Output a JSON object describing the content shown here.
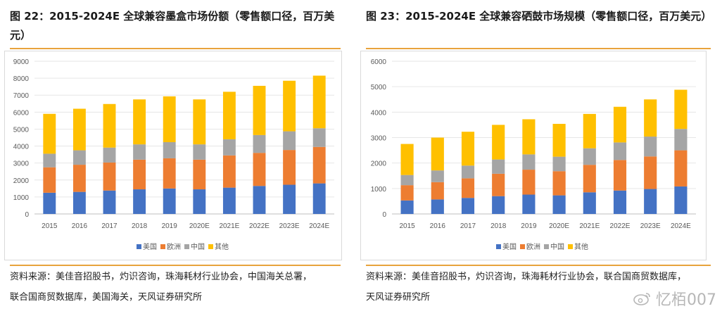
{
  "charts": {
    "left": {
      "title": "图 22：2015-2024E 全球兼容墨盒市场份额（零售额口径，百万美元）",
      "source_line1": "资料来源：美佳音招股书，灼识咨询，珠海耗材行业协会，中国海关总署，",
      "source_line2": "联合国商贸数据库，美国海关，天风证券研究所"
    },
    "right": {
      "title": "图 23：2015-2024E 全球兼容硒鼓市场规模（零售额口径，百万美元）",
      "source_line1": "资料来源：美佳音招股书，灼识咨询，珠海耗材行业协会，联合国商贸数据库，",
      "source_line2": "天风证券研究所"
    }
  },
  "watermark": "忆栢007",
  "colors": {
    "accent": "#e8a33c",
    "us": "#4472c4",
    "eu": "#ed7d31",
    "cn": "#a5a5a5",
    "other": "#ffc000"
  },
  "chart_data": [
    {
      "type": "bar",
      "stacked": true,
      "title": "2015-2024E 全球兼容墨盒市场份额（零售额口径，百万美元）",
      "categories": [
        "2015",
        "2016",
        "2017",
        "2018",
        "2019",
        "2020E",
        "2021E",
        "2022E",
        "2023E",
        "2024E"
      ],
      "ylim": [
        0,
        9000
      ],
      "yticks": [
        0,
        1000,
        2000,
        3000,
        4000,
        5000,
        6000,
        7000,
        8000,
        9000
      ],
      "grid": true,
      "legend_position": "bottom",
      "series": [
        {
          "name": "美国",
          "color": "#4472c4",
          "values": [
            1250,
            1300,
            1380,
            1450,
            1500,
            1450,
            1550,
            1650,
            1720,
            1800
          ]
        },
        {
          "name": "欧洲",
          "color": "#ed7d31",
          "values": [
            1500,
            1600,
            1650,
            1750,
            1780,
            1750,
            1900,
            1950,
            2050,
            2150
          ]
        },
        {
          "name": "中国",
          "color": "#a5a5a5",
          "values": [
            800,
            850,
            880,
            900,
            950,
            900,
            950,
            1050,
            1100,
            1100
          ]
        },
        {
          "name": "其他",
          "color": "#ffc000",
          "values": [
            2350,
            2450,
            2570,
            2650,
            2700,
            2650,
            2800,
            2900,
            2980,
            3100
          ]
        }
      ]
    },
    {
      "type": "bar",
      "stacked": true,
      "title": "2015-2024E 全球兼容硒鼓市场规模（零售额口径，百万美元）",
      "categories": [
        "2015",
        "2016",
        "2017",
        "2018",
        "2019",
        "2020E",
        "2021E",
        "2022E",
        "2023E",
        "2024E"
      ],
      "ylim": [
        0,
        6000
      ],
      "yticks": [
        0,
        1000,
        2000,
        3000,
        4000,
        5000,
        6000
      ],
      "grid": true,
      "legend_position": "bottom",
      "series": [
        {
          "name": "美国",
          "color": "#4472c4",
          "values": [
            530,
            570,
            630,
            700,
            760,
            730,
            850,
            920,
            980,
            1080
          ]
        },
        {
          "name": "欧洲",
          "color": "#ed7d31",
          "values": [
            600,
            680,
            770,
            880,
            980,
            950,
            1080,
            1200,
            1280,
            1420
          ]
        },
        {
          "name": "中国",
          "color": "#a5a5a5",
          "values": [
            400,
            460,
            500,
            560,
            600,
            570,
            650,
            690,
            780,
            840
          ]
        },
        {
          "name": "其他",
          "color": "#ffc000",
          "values": [
            1220,
            1290,
            1330,
            1360,
            1380,
            1290,
            1350,
            1400,
            1460,
            1540
          ]
        }
      ]
    }
  ]
}
